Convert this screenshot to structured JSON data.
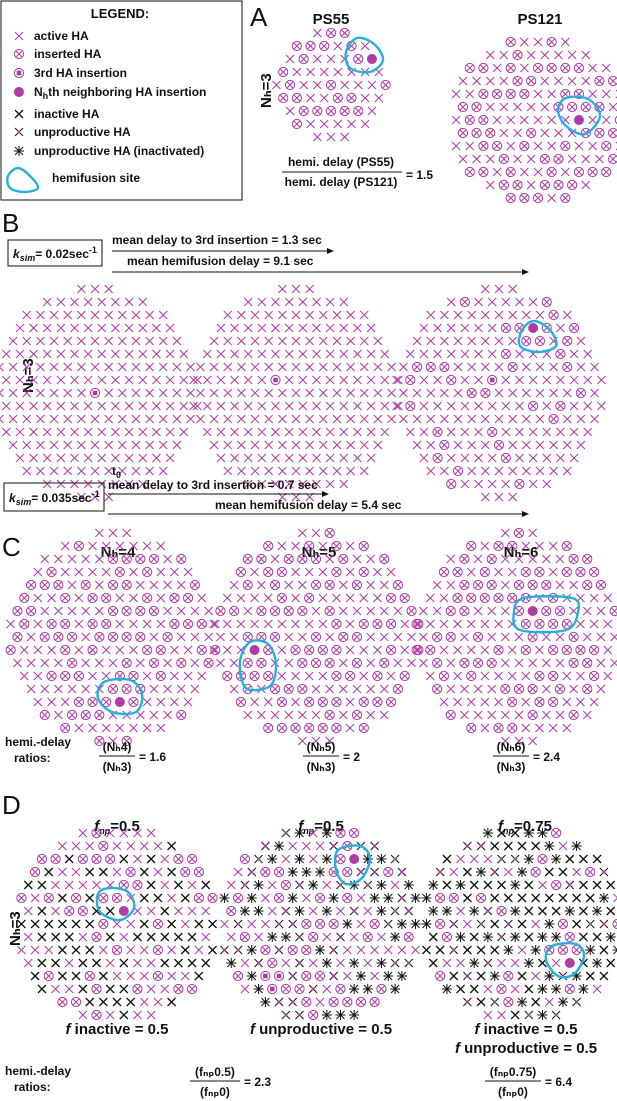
{
  "colors": {
    "active": "#b03aa6",
    "inactive": "#111111",
    "hemifusion": "#27aedb"
  },
  "legend": {
    "title": "LEGEND:",
    "items": [
      {
        "icon": "active-ha-icon",
        "label": "active HA"
      },
      {
        "icon": "inserted-ha-icon",
        "label": "inserted HA"
      },
      {
        "icon": "third-insertion-icon",
        "label": "3rd HA insertion"
      },
      {
        "icon": "nth-insertion-icon",
        "label_pre": "N",
        "label_sub": "h",
        "label_post": "th neighboring HA insertion"
      },
      {
        "icon": "inactive-ha-icon",
        "label": "inactive HA"
      },
      {
        "icon": "unproductive-ha-icon",
        "label": "unproductive HA"
      },
      {
        "icon": "unproductive-inactivated-icon",
        "label": "unproductive HA (inactivated)"
      },
      {
        "icon": "hemifusion-site-icon",
        "label": "hemifusion site"
      }
    ]
  },
  "panelA": {
    "letter": "A",
    "titles": [
      "PS55",
      "PS121"
    ],
    "nh_label": "Nₕ=3",
    "ratio_num": "hemi. delay (PS55)",
    "ratio_den": "hemi. delay (PS121)",
    "ratio_val": "= 1.5"
  },
  "panelB": {
    "letter": "B",
    "k1_label": "k",
    "k1_sub": "sim",
    "k1_value": "= 0.02sec",
    "k1_exp": "-1",
    "k2_label": "k",
    "k2_sub": "sim",
    "k2_value": "= 0.035sec",
    "k2_exp": "-1",
    "arrow1": "mean delay to 3rd insertion = 1.3 sec",
    "arrow2": "mean hemifusion delay = 9.1 sec",
    "arrow3": "mean delay to 3rd insertion = 0.7 sec",
    "arrow4": "mean hemifusion delay = 5.4 sec",
    "t0": "t",
    "t0_sub": "0",
    "nh_label": "Nₕ=3"
  },
  "panelC": {
    "letter": "C",
    "titles": [
      "Nₕ=4",
      "Nₕ=5",
      "Nₕ=6"
    ],
    "ratios_label_1": "hemi.-delay",
    "ratios_label_2": "ratios:",
    "ratios": [
      {
        "num": "(Nₕ4)",
        "den": "(Nₕ3)",
        "val": "= 1.6"
      },
      {
        "num": "(Nₕ5)",
        "den": "(Nₕ3)",
        "val": "= 2"
      },
      {
        "num": "(Nₕ6)",
        "den": "(Nₕ3)",
        "val": "= 2.4"
      }
    ]
  },
  "panelD": {
    "letter": "D",
    "titles": [
      {
        "f": "f",
        "sub": "np",
        "val": "=0.5"
      },
      {
        "f": "f",
        "sub": "np",
        "val": "=0.5"
      },
      {
        "f": "f",
        "sub": "np",
        "val": "=0.75"
      }
    ],
    "nh_label": "Nₕ=3",
    "cap1": {
      "f": "f",
      "text": " inactive = 0.5"
    },
    "cap2": {
      "f": "f",
      "text": " unproductive = 0.5"
    },
    "cap3a": {
      "f": "f",
      "text": " inactive = 0.5"
    },
    "cap3b": {
      "f": "f",
      "text": " unproductive = 0.5"
    },
    "ratios_label_1": "hemi.-delay",
    "ratios_label_2": "ratios:",
    "ratios": [
      {
        "num": "(fₙₚ0.5)",
        "den": "(fₙₚ0)",
        "val": "= 2.3"
      },
      {
        "num": "(fₙₚ0.75)",
        "den": "(fₙₚ0)",
        "val": "= 6.4"
      }
    ]
  }
}
